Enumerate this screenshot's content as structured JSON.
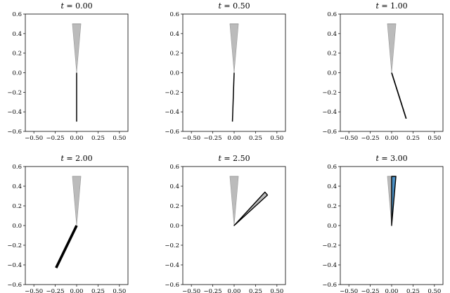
{
  "chart_data": [
    {
      "type": "line",
      "title_var": "t",
      "title_value": "= 0.00",
      "xlim": [
        -0.6,
        0.6
      ],
      "ylim": [
        -0.6,
        0.6
      ],
      "xticks": [
        "−0.50",
        "−0.25",
        "0.00",
        "0.25",
        "0.50"
      ],
      "yticks": [
        "0.6",
        "0.4",
        "0.2",
        "0.0",
        "−0.2",
        "−0.4",
        "−0.6"
      ],
      "xtick_values": [
        -0.5,
        -0.25,
        0,
        0.25,
        0.5
      ],
      "ytick_values": [
        0.6,
        0.4,
        0.2,
        0,
        -0.2,
        -0.4,
        -0.6
      ],
      "cone": {
        "apex": [
          0,
          0
        ],
        "top_left": [
          -0.05,
          0.5
        ],
        "top_right": [
          0.05,
          0.5
        ],
        "color": "#bbbbbb"
      },
      "rod": {
        "from": [
          0,
          0
        ],
        "to": [
          0,
          -0.5
        ],
        "width": 0.012,
        "color": "#000000"
      }
    },
    {
      "type": "line",
      "title_var": "t",
      "title_value": "= 0.50",
      "xlim": [
        -0.6,
        0.6
      ],
      "ylim": [
        -0.6,
        0.6
      ],
      "xticks": [
        "−0.50",
        "−0.25",
        "0.00",
        "0.25",
        "0.50"
      ],
      "yticks": [
        "0.6",
        "0.4",
        "0.2",
        "0.0",
        "−0.2",
        "−0.4",
        "−0.6"
      ],
      "xtick_values": [
        -0.5,
        -0.25,
        0,
        0.25,
        0.5
      ],
      "ytick_values": [
        0.6,
        0.4,
        0.2,
        0,
        -0.2,
        -0.4,
        -0.6
      ],
      "cone": {
        "apex": [
          0,
          0
        ],
        "top_left": [
          -0.05,
          0.5
        ],
        "top_right": [
          0.05,
          0.5
        ],
        "color": "#bbbbbb"
      },
      "rod": {
        "from": [
          0,
          0
        ],
        "to": [
          -0.02,
          -0.5
        ],
        "width": 0.012,
        "color": "#000000"
      }
    },
    {
      "type": "line",
      "title_var": "t",
      "title_value": "= 1.00",
      "xlim": [
        -0.6,
        0.6
      ],
      "ylim": [
        -0.6,
        0.6
      ],
      "xticks": [
        "−0.50",
        "−0.25",
        "0.00",
        "0.25",
        "0.50"
      ],
      "yticks": [
        "0.6",
        "0.4",
        "0.2",
        "0.0",
        "−0.2",
        "−0.4",
        "−0.6"
      ],
      "xtick_values": [
        -0.5,
        -0.25,
        0,
        0.25,
        0.5
      ],
      "ytick_values": [
        0.6,
        0.4,
        0.2,
        0,
        -0.2,
        -0.4,
        -0.6
      ],
      "cone": {
        "apex": [
          0,
          0
        ],
        "top_left": [
          -0.05,
          0.5
        ],
        "top_right": [
          0.05,
          0.5
        ],
        "color": "#bbbbbb"
      },
      "rod": {
        "from": [
          0,
          0
        ],
        "to": [
          0.17,
          -0.47
        ],
        "width": 0.014,
        "color": "#000000"
      }
    },
    {
      "type": "line",
      "title_var": "t",
      "title_value": "= 2.00",
      "xlim": [
        -0.6,
        0.6
      ],
      "ylim": [
        -0.6,
        0.6
      ],
      "xticks": [
        "−0.50",
        "−0.25",
        "0.00",
        "0.25",
        "0.50"
      ],
      "yticks": [
        "0.6",
        "0.4",
        "0.2",
        "0.0",
        "−0.2",
        "−0.4",
        "−0.6"
      ],
      "xtick_values": [
        -0.5,
        -0.25,
        0,
        0.25,
        0.5
      ],
      "ytick_values": [
        0.6,
        0.4,
        0.2,
        0,
        -0.2,
        -0.4,
        -0.6
      ],
      "cone": {
        "apex": [
          0,
          0
        ],
        "top_left": [
          -0.05,
          0.5
        ],
        "top_right": [
          0.05,
          0.5
        ],
        "color": "#bbbbbb"
      },
      "rod": {
        "from": [
          0,
          0
        ],
        "to": [
          -0.24,
          -0.43
        ],
        "width": 0.03,
        "color": "#000000"
      }
    },
    {
      "type": "line",
      "title_var": "t",
      "title_value": "= 2.50",
      "xlim": [
        -0.6,
        0.6
      ],
      "ylim": [
        -0.6,
        0.6
      ],
      "xticks": [
        "−0.50",
        "−0.25",
        "0.00",
        "0.25",
        "0.50"
      ],
      "yticks": [
        "0.6",
        "0.4",
        "0.2",
        "0.0",
        "−0.2",
        "−0.4",
        "−0.6"
      ],
      "xtick_values": [
        -0.5,
        -0.25,
        0,
        0.25,
        0.5
      ],
      "ytick_values": [
        0.6,
        0.4,
        0.2,
        0,
        -0.2,
        -0.4,
        -0.6
      ],
      "cone": {
        "apex": [
          0,
          0
        ],
        "top_left": [
          -0.05,
          0.5
        ],
        "top_right": [
          0.05,
          0.5
        ],
        "color": "#bbbbbb"
      },
      "wedge": {
        "apex": [
          0,
          0
        ],
        "p1": [
          0.36,
          0.34
        ],
        "p2": [
          0.39,
          0.31
        ],
        "fill": "#bbbbbb",
        "stroke": "#000000"
      }
    },
    {
      "type": "line",
      "title_var": "t",
      "title_value": "= 3.00",
      "xlim": [
        -0.6,
        0.6
      ],
      "ylim": [
        -0.6,
        0.6
      ],
      "xticks": [
        "−0.50",
        "−0.25",
        "0.00",
        "0.25",
        "0.50"
      ],
      "yticks": [
        "0.6",
        "0.4",
        "0.2",
        "0.0",
        "−0.2",
        "−0.4",
        "−0.6"
      ],
      "xtick_values": [
        -0.5,
        -0.25,
        0,
        0.25,
        0.5
      ],
      "ytick_values": [
        0.6,
        0.4,
        0.2,
        0,
        -0.2,
        -0.4,
        -0.6
      ],
      "cone": {
        "apex": [
          0,
          0
        ],
        "top_left": [
          -0.05,
          0.5
        ],
        "top_right": [
          0.05,
          0.5
        ],
        "color": "#bbbbbb"
      },
      "wedge": {
        "apex": [
          0,
          0
        ],
        "p1": [
          0.0,
          0.5
        ],
        "p2": [
          0.05,
          0.5
        ],
        "fill": "#4a8fc4",
        "stroke": "#000000"
      }
    }
  ]
}
